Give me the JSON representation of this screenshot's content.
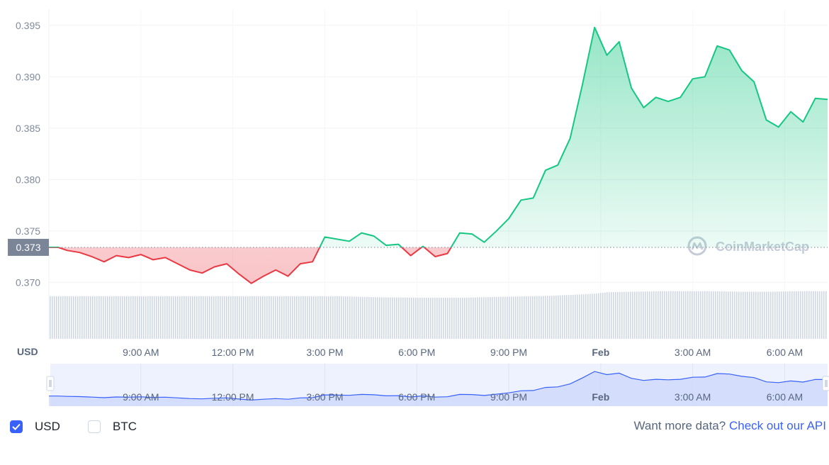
{
  "chart_data": {
    "type": "line",
    "currency_label": "USD",
    "current_price_label": "0.373",
    "reference_price": 0.3734,
    "y_ticks": [
      "0.395",
      "0.390",
      "0.385",
      "0.380",
      "0.375",
      "0.370"
    ],
    "y_tick_values": [
      0.395,
      0.39,
      0.385,
      0.38,
      0.375,
      0.37
    ],
    "ylim": [
      0.3685,
      0.3965
    ],
    "x_ticks": [
      {
        "label": "9:00 AM",
        "hour": 9,
        "bold": false
      },
      {
        "label": "12:00 PM",
        "hour": 12,
        "bold": false
      },
      {
        "label": "3:00 PM",
        "hour": 15,
        "bold": false
      },
      {
        "label": "6:00 PM",
        "hour": 18,
        "bold": false
      },
      {
        "label": "9:00 PM",
        "hour": 21,
        "bold": false
      },
      {
        "label": "Feb",
        "hour": 24,
        "bold": true
      },
      {
        "label": "3:00 AM",
        "hour": 27,
        "bold": false
      },
      {
        "label": "6:00 AM",
        "hour": 30,
        "bold": false
      }
    ],
    "xlim_hours": [
      6.0,
      31.4
    ],
    "series": [
      {
        "values": [
          [
            6.0,
            0.3734
          ],
          [
            6.3,
            0.3734
          ],
          [
            6.6,
            0.3731
          ],
          [
            7.0,
            0.3729
          ],
          [
            7.4,
            0.3725
          ],
          [
            7.8,
            0.372
          ],
          [
            8.2,
            0.3726
          ],
          [
            8.6,
            0.3724
          ],
          [
            9.0,
            0.3727
          ],
          [
            9.4,
            0.3722
          ],
          [
            9.8,
            0.3724
          ],
          [
            10.2,
            0.3718
          ],
          [
            10.6,
            0.3712
          ],
          [
            11.0,
            0.3709
          ],
          [
            11.4,
            0.3715
          ],
          [
            11.8,
            0.3718
          ],
          [
            12.2,
            0.3708
          ],
          [
            12.6,
            0.3699
          ],
          [
            13.0,
            0.3706
          ],
          [
            13.4,
            0.3712
          ],
          [
            13.8,
            0.3706
          ],
          [
            14.2,
            0.3718
          ],
          [
            14.6,
            0.372
          ],
          [
            15.0,
            0.3744
          ],
          [
            15.4,
            0.3742
          ],
          [
            15.8,
            0.374
          ],
          [
            16.2,
            0.3748
          ],
          [
            16.6,
            0.3745
          ],
          [
            17.0,
            0.3736
          ],
          [
            17.4,
            0.3737
          ],
          [
            17.8,
            0.3726
          ],
          [
            18.2,
            0.3735
          ],
          [
            18.6,
            0.3725
          ],
          [
            19.0,
            0.3728
          ],
          [
            19.4,
            0.3748
          ],
          [
            19.8,
            0.3747
          ],
          [
            20.2,
            0.3739
          ],
          [
            20.6,
            0.375
          ],
          [
            21.0,
            0.3762
          ],
          [
            21.4,
            0.378
          ],
          [
            21.8,
            0.3782
          ],
          [
            22.2,
            0.3809
          ],
          [
            22.6,
            0.3814
          ],
          [
            23.0,
            0.384
          ],
          [
            23.4,
            0.3892
          ],
          [
            23.8,
            0.3948
          ],
          [
            24.2,
            0.3921
          ],
          [
            24.6,
            0.3934
          ],
          [
            25.0,
            0.3889
          ],
          [
            25.4,
            0.387
          ],
          [
            25.8,
            0.388
          ],
          [
            26.2,
            0.3876
          ],
          [
            26.6,
            0.388
          ],
          [
            27.0,
            0.3898
          ],
          [
            27.4,
            0.39
          ],
          [
            27.8,
            0.393
          ],
          [
            28.2,
            0.3926
          ],
          [
            28.6,
            0.3906
          ],
          [
            29.0,
            0.3895
          ],
          [
            29.4,
            0.3858
          ],
          [
            29.8,
            0.3851
          ],
          [
            30.2,
            0.3866
          ],
          [
            30.6,
            0.3856
          ],
          [
            31.0,
            0.3879
          ],
          [
            31.4,
            0.3878
          ]
        ]
      }
    ],
    "volume_relative": [
      [
        6.0,
        0.86
      ],
      [
        14.0,
        0.86
      ],
      [
        15.5,
        0.86
      ],
      [
        16.5,
        0.84
      ],
      [
        18.0,
        0.83
      ],
      [
        19.5,
        0.83
      ],
      [
        21.0,
        0.85
      ],
      [
        22.5,
        0.87
      ],
      [
        23.8,
        0.91
      ],
      [
        24.2,
        0.94
      ],
      [
        25.0,
        0.95
      ],
      [
        26.0,
        0.96
      ],
      [
        27.5,
        0.96
      ],
      [
        28.5,
        0.95
      ],
      [
        29.5,
        0.95
      ],
      [
        30.5,
        0.96
      ],
      [
        31.4,
        0.96
      ]
    ],
    "navigator_ticks": [
      "9:00 AM",
      "12:00 PM",
      "3:00 PM",
      "6:00 PM",
      "9:00 PM",
      "Feb",
      "3:00 AM",
      "6:00 AM"
    ],
    "colors": {
      "up": "#16c784",
      "down": "#ea3943",
      "navigator_line": "#3861fb",
      "volume": "#cfd6e4"
    },
    "grid": true
  },
  "watermark": {
    "icon": "coinmarketcap-logo-icon",
    "text": "CoinMarketCap"
  },
  "footer": {
    "usd_label": "USD",
    "usd_checked": true,
    "btc_label": "BTC",
    "btc_checked": false,
    "more_data_text": "Want more data?",
    "api_link_text": "Check out our API"
  }
}
